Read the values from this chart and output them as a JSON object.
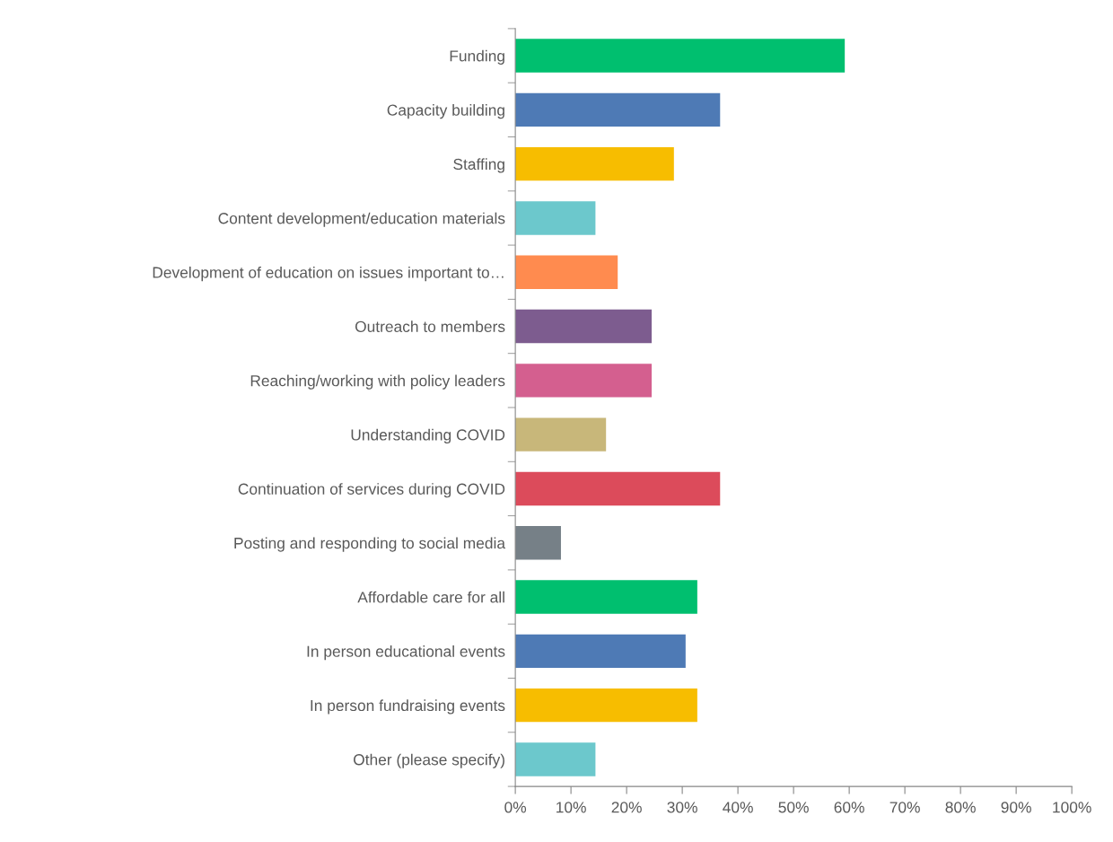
{
  "chart_data": {
    "type": "bar",
    "orientation": "horizontal",
    "categories": [
      "Funding",
      "Capacity building",
      "Staffing",
      "Content development/education materials",
      "Development of education on issues important to…",
      "Outreach to members",
      "Reaching/working with policy leaders",
      "Understanding COVID",
      "Continuation of services during COVID",
      "Posting and responding to social media",
      "Affordable care for all",
      "In person educational events",
      "In person fundraising events",
      "Other (please specify)"
    ],
    "values": [
      59.2,
      36.8,
      28.5,
      14.4,
      18.4,
      24.5,
      24.5,
      16.3,
      36.8,
      8.2,
      32.7,
      30.6,
      32.7,
      14.4
    ],
    "colors": [
      "#00bf6f",
      "#4e7ab5",
      "#f7bd00",
      "#6cc8cc",
      "#ff8b4f",
      "#7d5c8f",
      "#d45f8f",
      "#c8b77a",
      "#dc4b5b",
      "#768087",
      "#00bf6f",
      "#4e7ab5",
      "#f7bd00",
      "#6cc8cc"
    ],
    "xlim": [
      0,
      100
    ],
    "xticks": [
      {
        "value": 0,
        "label": "0%"
      },
      {
        "value": 10,
        "label": "10%"
      },
      {
        "value": 20,
        "label": "20%"
      },
      {
        "value": 30,
        "label": "30%"
      },
      {
        "value": 40,
        "label": "40%"
      },
      {
        "value": 50,
        "label": "50%"
      },
      {
        "value": 60,
        "label": "60%"
      },
      {
        "value": 70,
        "label": "70%"
      },
      {
        "value": 80,
        "label": "80%"
      },
      {
        "value": 90,
        "label": "90%"
      },
      {
        "value": 100,
        "label": "100%"
      }
    ],
    "grid": false,
    "legend": false
  }
}
